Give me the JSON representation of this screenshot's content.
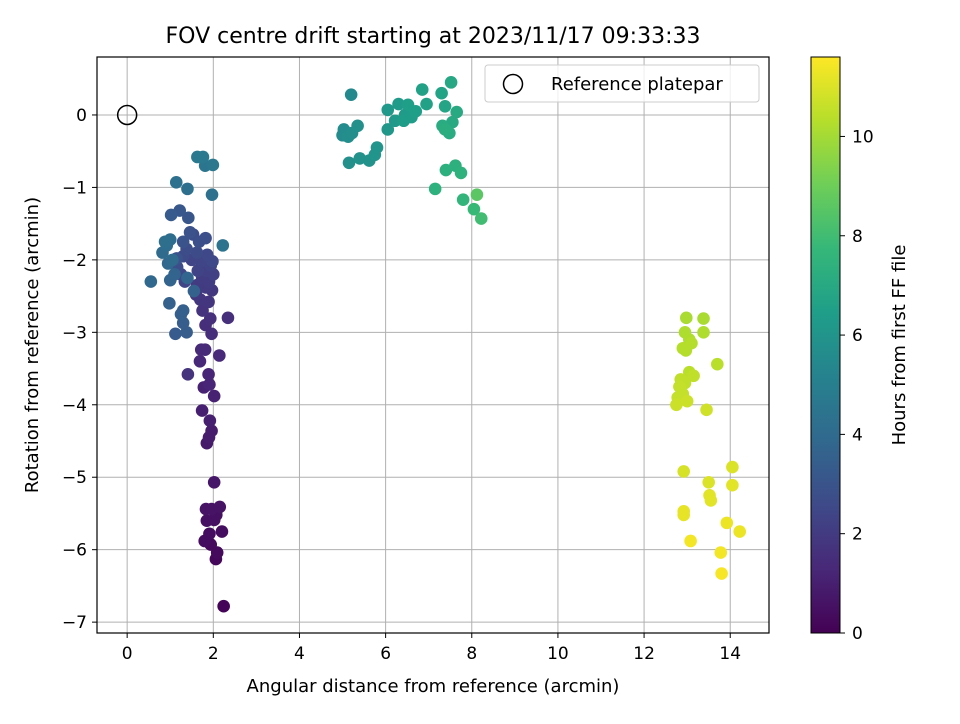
{
  "chart_data": {
    "type": "scatter",
    "title": "FOV centre drift starting at 2023/11/17 09:33:33",
    "xlabel": "Angular distance from reference (arcmin)",
    "ylabel": "Rotation from reference (arcmin)",
    "xlim": [
      -0.7,
      14.9
    ],
    "ylim": [
      -7.15,
      0.8
    ],
    "xticks": [
      0,
      2,
      4,
      6,
      8,
      10,
      12,
      14
    ],
    "yticks": [
      0,
      -1,
      -2,
      -3,
      -4,
      -5,
      -6,
      -7
    ],
    "grid": true,
    "legend": {
      "placement": "top-right",
      "entries": [
        "Reference platepar"
      ]
    },
    "reference_point": {
      "x": 0,
      "y": 0
    },
    "colorbar": {
      "label": "Hours from first FF file",
      "colormap": "viridis",
      "range": [
        0,
        11.6
      ],
      "ticks": [
        0,
        2,
        4,
        6,
        8,
        10
      ]
    },
    "colormap_stops": [
      "#440154",
      "#482878",
      "#3e4a89",
      "#31688e",
      "#26828e",
      "#1f9e89",
      "#35b779",
      "#6ece58",
      "#b5de2b",
      "#fde725"
    ],
    "points": [
      {
        "x": 2.24,
        "y": -6.78,
        "h": 0.1
      },
      {
        "x": 2.06,
        "y": -6.13,
        "h": 0.2
      },
      {
        "x": 2.09,
        "y": -6.04,
        "h": 0.3
      },
      {
        "x": 1.94,
        "y": -5.93,
        "h": 0.3
      },
      {
        "x": 1.8,
        "y": -5.88,
        "h": 0.4
      },
      {
        "x": 1.91,
        "y": -5.78,
        "h": 0.4
      },
      {
        "x": 2.2,
        "y": -5.75,
        "h": 0.4
      },
      {
        "x": 1.85,
        "y": -5.6,
        "h": 0.5
      },
      {
        "x": 2.02,
        "y": -5.59,
        "h": 0.5
      },
      {
        "x": 2.07,
        "y": -5.52,
        "h": 0.5
      },
      {
        "x": 1.83,
        "y": -5.44,
        "h": 0.6
      },
      {
        "x": 1.96,
        "y": -5.44,
        "h": 0.6
      },
      {
        "x": 2.15,
        "y": -5.41,
        "h": 0.6
      },
      {
        "x": 2.02,
        "y": -5.07,
        "h": 0.7
      },
      {
        "x": 1.85,
        "y": -4.53,
        "h": 0.8
      },
      {
        "x": 1.9,
        "y": -4.45,
        "h": 0.9
      },
      {
        "x": 1.96,
        "y": -4.36,
        "h": 0.9
      },
      {
        "x": 1.92,
        "y": -4.22,
        "h": 1.0
      },
      {
        "x": 1.74,
        "y": -4.08,
        "h": 1.0
      },
      {
        "x": 2.02,
        "y": -3.88,
        "h": 1.1
      },
      {
        "x": 1.78,
        "y": -3.76,
        "h": 1.1
      },
      {
        "x": 1.91,
        "y": -3.72,
        "h": 1.2
      },
      {
        "x": 1.89,
        "y": -3.58,
        "h": 1.2
      },
      {
        "x": 1.41,
        "y": -3.58,
        "h": 1.7
      },
      {
        "x": 1.69,
        "y": -3.4,
        "h": 1.3
      },
      {
        "x": 2.14,
        "y": -3.32,
        "h": 1.3
      },
      {
        "x": 1.72,
        "y": -3.24,
        "h": 1.4
      },
      {
        "x": 1.81,
        "y": -3.24,
        "h": 1.4
      },
      {
        "x": 1.96,
        "y": -3.02,
        "h": 1.5
      },
      {
        "x": 1.82,
        "y": -2.9,
        "h": 1.5
      },
      {
        "x": 1.93,
        "y": -2.81,
        "h": 1.6
      },
      {
        "x": 2.34,
        "y": -2.8,
        "h": 1.6
      },
      {
        "x": 1.75,
        "y": -2.7,
        "h": 1.7
      },
      {
        "x": 1.89,
        "y": -2.58,
        "h": 1.8
      },
      {
        "x": 1.7,
        "y": -2.55,
        "h": 1.8
      },
      {
        "x": 1.6,
        "y": -2.48,
        "h": 1.9
      },
      {
        "x": 1.97,
        "y": -2.42,
        "h": 1.9
      },
      {
        "x": 1.82,
        "y": -2.38,
        "h": 2.0
      },
      {
        "x": 1.62,
        "y": -2.35,
        "h": 2.0
      },
      {
        "x": 1.9,
        "y": -2.3,
        "h": 2.1
      },
      {
        "x": 1.74,
        "y": -2.25,
        "h": 2.1
      },
      {
        "x": 2.0,
        "y": -2.2,
        "h": 2.2
      },
      {
        "x": 1.82,
        "y": -2.15,
        "h": 2.2
      },
      {
        "x": 1.64,
        "y": -2.15,
        "h": 2.3
      },
      {
        "x": 1.94,
        "y": -2.08,
        "h": 2.3
      },
      {
        "x": 1.72,
        "y": -2.02,
        "h": 2.4
      },
      {
        "x": 1.5,
        "y": -2.0,
        "h": 2.4
      },
      {
        "x": 1.98,
        "y": -2.02,
        "h": 2.5
      },
      {
        "x": 1.86,
        "y": -1.93,
        "h": 2.5
      },
      {
        "x": 1.3,
        "y": -1.95,
        "h": 2.6
      },
      {
        "x": 1.62,
        "y": -1.9,
        "h": 2.6
      },
      {
        "x": 1.38,
        "y": -1.85,
        "h": 2.7
      },
      {
        "x": 1.53,
        "y": -1.65,
        "h": 2.7
      },
      {
        "x": 1.67,
        "y": -1.75,
        "h": 2.8
      },
      {
        "x": 1.82,
        "y": -1.7,
        "h": 2.8
      },
      {
        "x": 1.46,
        "y": -1.62,
        "h": 2.9
      },
      {
        "x": 1.34,
        "y": -2.3,
        "h": 2.4
      },
      {
        "x": 1.25,
        "y": -2.2,
        "h": 2.5
      },
      {
        "x": 1.16,
        "y": -2.1,
        "h": 2.7
      },
      {
        "x": 1.08,
        "y": -2.02,
        "h": 2.8
      },
      {
        "x": 1.15,
        "y": -1.98,
        "h": 2.9
      },
      {
        "x": 1.3,
        "y": -1.75,
        "h": 3.0
      },
      {
        "x": 1.42,
        "y": -1.42,
        "h": 3.1
      },
      {
        "x": 1.22,
        "y": -1.32,
        "h": 3.2
      },
      {
        "x": 1.02,
        "y": -1.38,
        "h": 3.3
      },
      {
        "x": 1.12,
        "y": -3.02,
        "h": 3.3
      },
      {
        "x": 1.38,
        "y": -3.0,
        "h": 3.4
      },
      {
        "x": 1.3,
        "y": -2.87,
        "h": 3.4
      },
      {
        "x": 1.25,
        "y": -2.75,
        "h": 3.5
      },
      {
        "x": 1.3,
        "y": -2.7,
        "h": 3.5
      },
      {
        "x": 0.98,
        "y": -2.6,
        "h": 3.6
      },
      {
        "x": 1.55,
        "y": -2.43,
        "h": 3.6
      },
      {
        "x": 1.0,
        "y": -2.28,
        "h": 3.7
      },
      {
        "x": 1.1,
        "y": -2.2,
        "h": 3.7
      },
      {
        "x": 1.4,
        "y": -2.25,
        "h": 3.8
      },
      {
        "x": 0.55,
        "y": -2.3,
        "h": 3.9
      },
      {
        "x": 0.95,
        "y": -2.05,
        "h": 3.9
      },
      {
        "x": 1.05,
        "y": -2.0,
        "h": 4.0
      },
      {
        "x": 0.82,
        "y": -1.9,
        "h": 4.0
      },
      {
        "x": 0.92,
        "y": -1.8,
        "h": 4.1
      },
      {
        "x": 1.0,
        "y": -1.72,
        "h": 4.1
      },
      {
        "x": 0.88,
        "y": -1.75,
        "h": 4.2
      },
      {
        "x": 1.4,
        "y": -1.02,
        "h": 4.2
      },
      {
        "x": 1.14,
        "y": -0.93,
        "h": 4.3
      },
      {
        "x": 1.97,
        "y": -1.1,
        "h": 4.3
      },
      {
        "x": 2.22,
        "y": -1.8,
        "h": 4.4
      },
      {
        "x": 1.81,
        "y": -0.7,
        "h": 4.5
      },
      {
        "x": 1.99,
        "y": -0.69,
        "h": 4.6
      },
      {
        "x": 1.63,
        "y": -0.58,
        "h": 4.7
      },
      {
        "x": 1.76,
        "y": -0.58,
        "h": 4.7
      },
      {
        "x": 5.2,
        "y": 0.28,
        "h": 5.5
      },
      {
        "x": 5.03,
        "y": -0.2,
        "h": 5.6
      },
      {
        "x": 5.0,
        "y": -0.28,
        "h": 5.6
      },
      {
        "x": 5.13,
        "y": -0.3,
        "h": 5.7
      },
      {
        "x": 5.22,
        "y": -0.25,
        "h": 5.7
      },
      {
        "x": 5.35,
        "y": -0.15,
        "h": 5.8
      },
      {
        "x": 5.15,
        "y": -0.66,
        "h": 5.8
      },
      {
        "x": 5.4,
        "y": -0.6,
        "h": 5.9
      },
      {
        "x": 5.62,
        "y": -0.63,
        "h": 5.9
      },
      {
        "x": 5.75,
        "y": -0.55,
        "h": 6.0
      },
      {
        "x": 5.8,
        "y": -0.45,
        "h": 6.0
      },
      {
        "x": 6.05,
        "y": -0.2,
        "h": 6.1
      },
      {
        "x": 6.05,
        "y": 0.07,
        "h": 6.2
      },
      {
        "x": 6.22,
        "y": -0.08,
        "h": 6.2
      },
      {
        "x": 6.3,
        "y": 0.15,
        "h": 6.3
      },
      {
        "x": 6.45,
        "y": 0.0,
        "h": 6.3
      },
      {
        "x": 6.42,
        "y": -0.08,
        "h": 6.4
      },
      {
        "x": 6.6,
        "y": -0.03,
        "h": 6.4
      },
      {
        "x": 6.52,
        "y": 0.14,
        "h": 6.5
      },
      {
        "x": 6.7,
        "y": 0.05,
        "h": 6.5
      },
      {
        "x": 6.85,
        "y": 0.35,
        "h": 6.6
      },
      {
        "x": 6.95,
        "y": 0.15,
        "h": 6.6
      },
      {
        "x": 7.3,
        "y": 0.3,
        "h": 6.7
      },
      {
        "x": 7.38,
        "y": 0.12,
        "h": 6.8
      },
      {
        "x": 7.52,
        "y": 0.45,
        "h": 6.9
      },
      {
        "x": 7.65,
        "y": 0.04,
        "h": 7.0
      },
      {
        "x": 7.55,
        "y": -0.1,
        "h": 7.0
      },
      {
        "x": 7.32,
        "y": -0.15,
        "h": 7.1
      },
      {
        "x": 7.48,
        "y": -0.25,
        "h": 7.1
      },
      {
        "x": 7.38,
        "y": -0.2,
        "h": 7.2
      },
      {
        "x": 7.62,
        "y": -0.7,
        "h": 7.3
      },
      {
        "x": 7.4,
        "y": -0.76,
        "h": 7.3
      },
      {
        "x": 7.75,
        "y": -0.8,
        "h": 7.4
      },
      {
        "x": 7.15,
        "y": -1.02,
        "h": 7.4
      },
      {
        "x": 7.8,
        "y": -1.17,
        "h": 7.6
      },
      {
        "x": 8.05,
        "y": -1.3,
        "h": 7.8
      },
      {
        "x": 8.22,
        "y": -1.43,
        "h": 8.0
      },
      {
        "x": 8.12,
        "y": -1.1,
        "h": 8.6
      },
      {
        "x": 12.98,
        "y": -2.8,
        "h": 10.1
      },
      {
        "x": 13.38,
        "y": -2.81,
        "h": 10.1
      },
      {
        "x": 12.95,
        "y": -3.0,
        "h": 10.2
      },
      {
        "x": 13.38,
        "y": -3.0,
        "h": 10.2
      },
      {
        "x": 13.05,
        "y": -3.1,
        "h": 10.2
      },
      {
        "x": 13.1,
        "y": -3.15,
        "h": 10.3
      },
      {
        "x": 12.9,
        "y": -3.22,
        "h": 10.3
      },
      {
        "x": 12.97,
        "y": -3.25,
        "h": 10.3
      },
      {
        "x": 13.7,
        "y": -3.44,
        "h": 10.4
      },
      {
        "x": 13.05,
        "y": -3.55,
        "h": 10.4
      },
      {
        "x": 13.15,
        "y": -3.6,
        "h": 10.5
      },
      {
        "x": 12.85,
        "y": -3.65,
        "h": 10.5
      },
      {
        "x": 12.95,
        "y": -3.7,
        "h": 10.5
      },
      {
        "x": 12.82,
        "y": -3.75,
        "h": 10.6
      },
      {
        "x": 12.9,
        "y": -3.85,
        "h": 10.6
      },
      {
        "x": 12.78,
        "y": -3.9,
        "h": 10.6
      },
      {
        "x": 13.0,
        "y": -3.95,
        "h": 10.7
      },
      {
        "x": 12.75,
        "y": -4.0,
        "h": 10.7
      },
      {
        "x": 13.45,
        "y": -4.07,
        "h": 10.8
      },
      {
        "x": 12.92,
        "y": -4.92,
        "h": 10.9
      },
      {
        "x": 13.5,
        "y": -5.07,
        "h": 11.0
      },
      {
        "x": 14.05,
        "y": -4.86,
        "h": 11.0
      },
      {
        "x": 14.05,
        "y": -5.11,
        "h": 11.1
      },
      {
        "x": 13.52,
        "y": -5.25,
        "h": 11.1
      },
      {
        "x": 13.55,
        "y": -5.32,
        "h": 11.1
      },
      {
        "x": 12.92,
        "y": -5.47,
        "h": 11.2
      },
      {
        "x": 12.92,
        "y": -5.52,
        "h": 11.2
      },
      {
        "x": 13.92,
        "y": -5.63,
        "h": 11.3
      },
      {
        "x": 14.22,
        "y": -5.75,
        "h": 11.3
      },
      {
        "x": 13.08,
        "y": -5.88,
        "h": 11.4
      },
      {
        "x": 13.78,
        "y": -6.04,
        "h": 11.4
      },
      {
        "x": 13.8,
        "y": -6.33,
        "h": 11.5
      }
    ]
  }
}
